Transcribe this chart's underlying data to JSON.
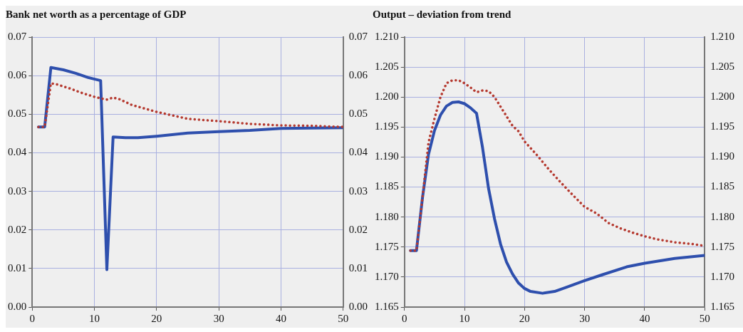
{
  "chart_data": [
    {
      "type": "line",
      "title": "Bank net worth as a percentage of GDP",
      "xlim": [
        0,
        50
      ],
      "xticks": [
        0,
        10,
        20,
        30,
        40,
        50
      ],
      "ylim": [
        0,
        0.07
      ],
      "yticks": [
        {
          "value": 0,
          "label": "0.00"
        },
        {
          "value": 0.01,
          "label": "0.01"
        },
        {
          "value": 0.02,
          "label": "0.02"
        },
        {
          "value": 0.03,
          "label": "0.03"
        },
        {
          "value": 0.04,
          "label": "0.04"
        },
        {
          "value": 0.05,
          "label": "0.05"
        },
        {
          "value": 0.06,
          "label": "0.06"
        },
        {
          "value": 0.07,
          "label": "0.07"
        }
      ],
      "y2lim": [
        0,
        0.07
      ],
      "y2ticks": [
        {
          "value": 0,
          "label": "0.00"
        },
        {
          "value": 0.01,
          "label": "0.01"
        },
        {
          "value": 0.02,
          "label": "0.02"
        },
        {
          "value": 0.03,
          "label": "0.03"
        },
        {
          "value": 0.04,
          "label": "0.04"
        },
        {
          "value": 0.05,
          "label": "0.05"
        },
        {
          "value": 0.06,
          "label": "0.06"
        },
        {
          "value": 0.07,
          "label": "0.07"
        }
      ],
      "grid": true,
      "legend": false,
      "marker": "none",
      "series": [
        {
          "color": "#2e4fad",
          "line_style": "solid",
          "x": [
            1,
            2,
            3,
            5,
            7,
            9,
            11,
            12,
            13,
            15,
            17,
            20,
            25,
            30,
            35,
            40,
            45,
            50
          ],
          "values": [
            0.0467,
            0.0467,
            0.0621,
            0.0615,
            0.0606,
            0.0595,
            0.0587,
            0.0097,
            0.0441,
            0.0439,
            0.0439,
            0.0443,
            0.0451,
            0.0455,
            0.0458,
            0.0463,
            0.0464,
            0.0465
          ]
        },
        {
          "color": "#b5392f",
          "line_style": "dotted",
          "x": [
            1,
            2,
            3,
            4,
            6,
            8,
            10,
            11,
            12,
            13,
            14,
            16,
            20,
            25,
            30,
            35,
            40,
            45,
            50
          ],
          "values": [
            0.0467,
            0.0467,
            0.058,
            0.0577,
            0.0567,
            0.0555,
            0.0545,
            0.0541,
            0.0538,
            0.0543,
            0.0539,
            0.0524,
            0.0506,
            0.0488,
            0.0482,
            0.0475,
            0.0471,
            0.047,
            0.0467
          ]
        }
      ]
    },
    {
      "type": "line",
      "title": "Output – deviation from trend",
      "xlim": [
        0,
        50
      ],
      "xticks": [
        0,
        10,
        20,
        30,
        40,
        50
      ],
      "ylim": [
        1.165,
        1.21
      ],
      "yticks": [
        {
          "value": 1.165,
          "label": "1.165"
        },
        {
          "value": 1.17,
          "label": "1.170"
        },
        {
          "value": 1.175,
          "label": "1.175"
        },
        {
          "value": 1.18,
          "label": "1.180"
        },
        {
          "value": 1.185,
          "label": "1.185"
        },
        {
          "value": 1.19,
          "label": "1.190"
        },
        {
          "value": 1.195,
          "label": "1.195"
        },
        {
          "value": 1.2,
          "label": "1.200"
        },
        {
          "value": 1.205,
          "label": "1.205"
        },
        {
          "value": 1.21,
          "label": "1.210"
        }
      ],
      "y2lim": [
        1.165,
        1.21
      ],
      "y2ticks": [
        {
          "value": 1.165,
          "label": "1.165"
        },
        {
          "value": 1.17,
          "label": "1.170"
        },
        {
          "value": 1.175,
          "label": "1.175"
        },
        {
          "value": 1.18,
          "label": "1.180"
        },
        {
          "value": 1.185,
          "label": "1.185"
        },
        {
          "value": 1.19,
          "label": "1.190"
        },
        {
          "value": 1.195,
          "label": "1.195"
        },
        {
          "value": 1.2,
          "label": "1.200"
        },
        {
          "value": 1.205,
          "label": "1.205"
        },
        {
          "value": 1.21,
          "label": "1.210"
        }
      ],
      "grid": true,
      "legend": false,
      "marker": "none",
      "series": [
        {
          "color": "#2e4fad",
          "line_style": "solid",
          "x": [
            1,
            2,
            3,
            4,
            5,
            6,
            7,
            8,
            9,
            10,
            11,
            12,
            13,
            14,
            15,
            16,
            17,
            18,
            19,
            20,
            21,
            23,
            25,
            27,
            30,
            33,
            37,
            40,
            45,
            50
          ],
          "values": [
            1.1744,
            1.1744,
            1.1832,
            1.1904,
            1.1944,
            1.197,
            1.1985,
            1.1991,
            1.1992,
            1.1989,
            1.1982,
            1.1973,
            1.1916,
            1.1848,
            1.1797,
            1.1755,
            1.1725,
            1.1705,
            1.169,
            1.1681,
            1.1676,
            1.1673,
            1.1676,
            1.1683,
            1.1694,
            1.1704,
            1.1717,
            1.1723,
            1.1731,
            1.1736
          ]
        },
        {
          "color": "#b5392f",
          "line_style": "dotted",
          "x": [
            1,
            2,
            3,
            4,
            5,
            6,
            7,
            8,
            9,
            10,
            11,
            12,
            13,
            14,
            15,
            16,
            17,
            18,
            19,
            20,
            22,
            24,
            26,
            28,
            30,
            32,
            34,
            36,
            38,
            40,
            42,
            45,
            48,
            50
          ],
          "values": [
            1.1744,
            1.1744,
            1.1832,
            1.1924,
            1.1964,
            1.2,
            1.2023,
            1.2028,
            1.2028,
            1.2023,
            1.2016,
            1.2008,
            1.2011,
            1.201,
            1.2,
            1.1984,
            1.1968,
            1.1952,
            1.1943,
            1.1926,
            1.1904,
            1.188,
            1.1858,
            1.1837,
            1.1817,
            1.1806,
            1.179,
            1.1781,
            1.1774,
            1.1768,
            1.1763,
            1.1758,
            1.1755,
            1.1752
          ]
        }
      ]
    }
  ]
}
